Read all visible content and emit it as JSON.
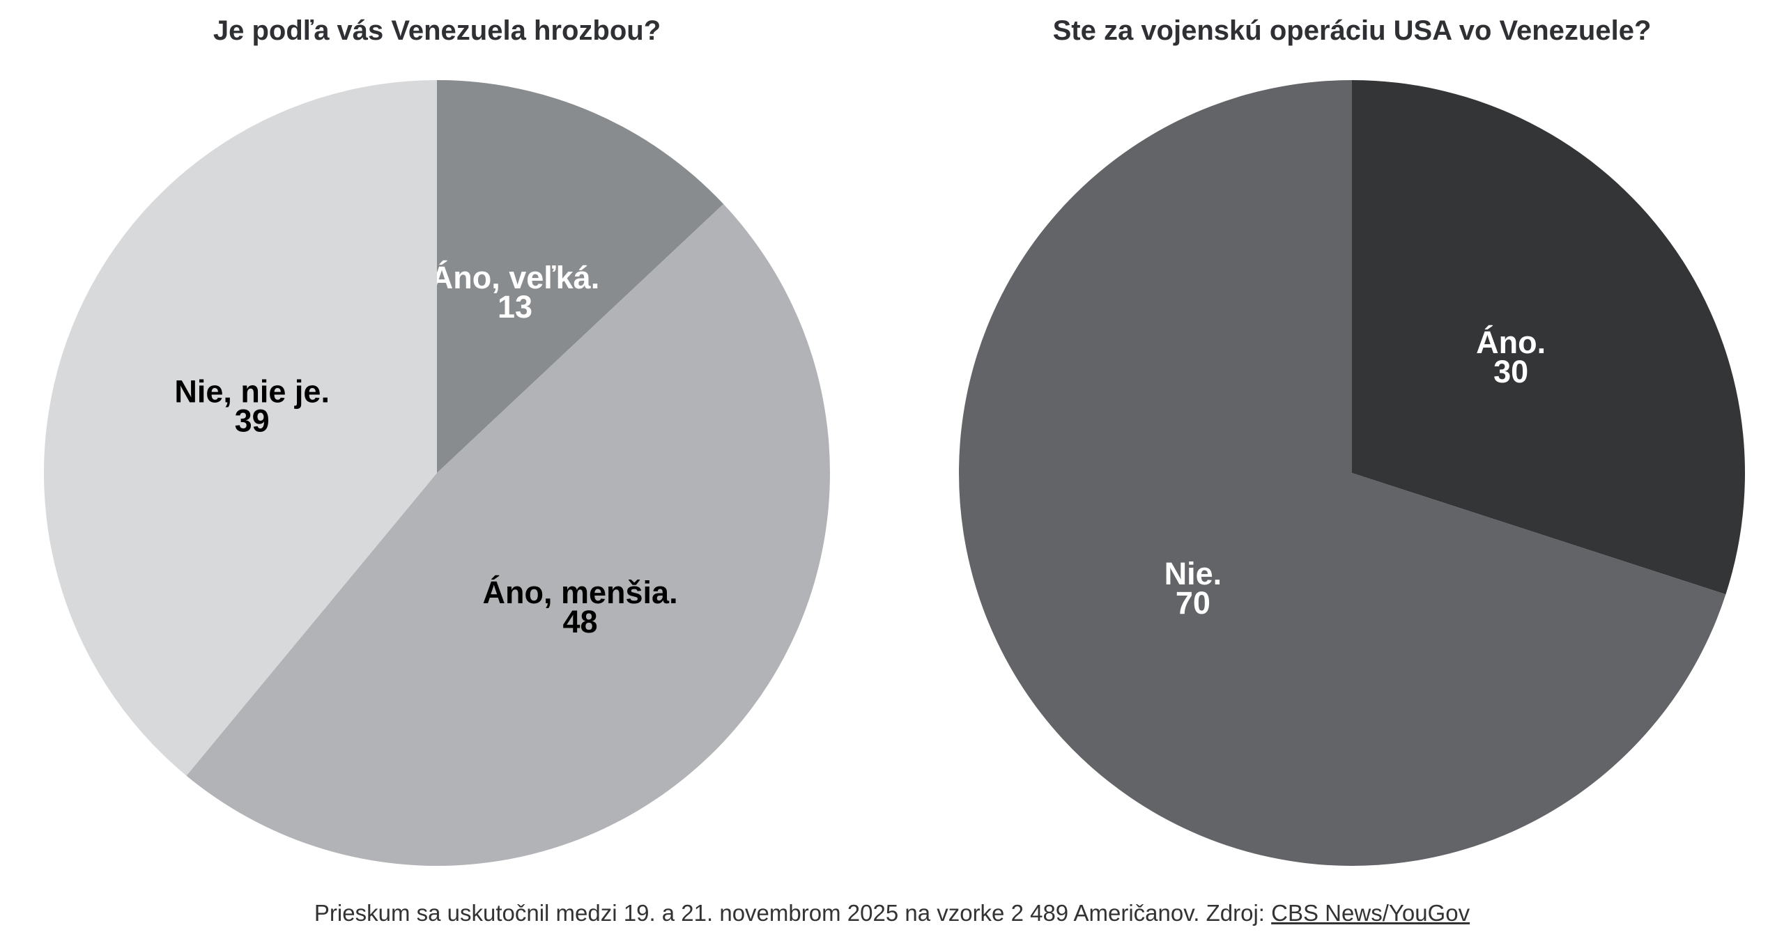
{
  "chart_data": [
    {
      "type": "pie",
      "title": "Je podľa vás Venezuela hrozbou?",
      "slices": [
        {
          "label": "Áno, veľká.",
          "value": 13,
          "color": "#898c8f",
          "text_color": "#ffffff"
        },
        {
          "label": "Áno, menšia.",
          "value": 48,
          "color": "#b2b3b6",
          "text_color": "#000000"
        },
        {
          "label": "Nie, nie je.",
          "value": 39,
          "color": "#d8d9db",
          "text_color": "#000000"
        }
      ]
    },
    {
      "type": "pie",
      "title": "Ste za vojenskú operáciu USA vo Venezuele?",
      "slices": [
        {
          "label": "Áno.",
          "value": 30,
          "color": "#343537",
          "text_color": "#ffffff"
        },
        {
          "label": "Nie.",
          "value": 70,
          "color": "#636468",
          "text_color": "#ffffff"
        }
      ]
    }
  ],
  "footer": {
    "text": "Prieskum sa uskutočnil medzi 19. a 21. novembrom 2025 na vzorke 2 489 Američanov. Zdroj: ",
    "source_link": "CBS News/YouGov"
  }
}
